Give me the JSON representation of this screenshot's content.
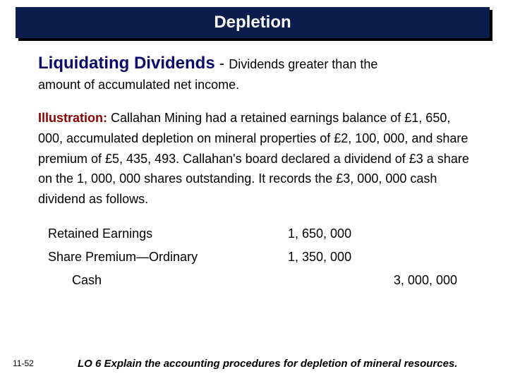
{
  "banner": {
    "title": "Depletion",
    "background_color": "#0b1d4d",
    "text_color": "#ffffff",
    "shadow_color": "#000000"
  },
  "heading": {
    "main": "Liquidating Dividends",
    "separator": " - ",
    "rest": "Dividends greater than the",
    "line2": "amount of accumulated net income.",
    "main_color": "#0a0a6a"
  },
  "illustration": {
    "label": "Illustration:  ",
    "label_color": "#8b0000",
    "text": "Callahan Mining had a retained earnings balance of £1, 650, 000, accumulated depletion on mineral properties of £2, 100, 000, and share premium of £5, 435, 493. Callahan's board declared a dividend of £3 a share on the 1, 000, 000 shares outstanding. It records the £3, 000, 000 cash dividend as follows."
  },
  "journal_entry": {
    "rows": [
      {
        "account": "Retained Earnings",
        "debit": "1, 650, 000",
        "credit": "",
        "indent": false
      },
      {
        "account": "Share Premium—Ordinary",
        "debit": "1, 350, 000",
        "credit": "",
        "indent": false
      },
      {
        "account": "Cash",
        "debit": "",
        "credit": "3, 000, 000",
        "indent": true
      }
    ]
  },
  "footer": {
    "page_number": "11-52",
    "lo": "LO 6  Explain the accounting procedures for depletion of mineral resources."
  },
  "typography": {
    "title_fontsize": 24,
    "heading_fontsize": 24,
    "body_fontsize": 18,
    "footer_fontsize": 12,
    "lo_fontsize": 15
  },
  "colors": {
    "page_background": "#ffffff",
    "body_text": "#000000"
  }
}
